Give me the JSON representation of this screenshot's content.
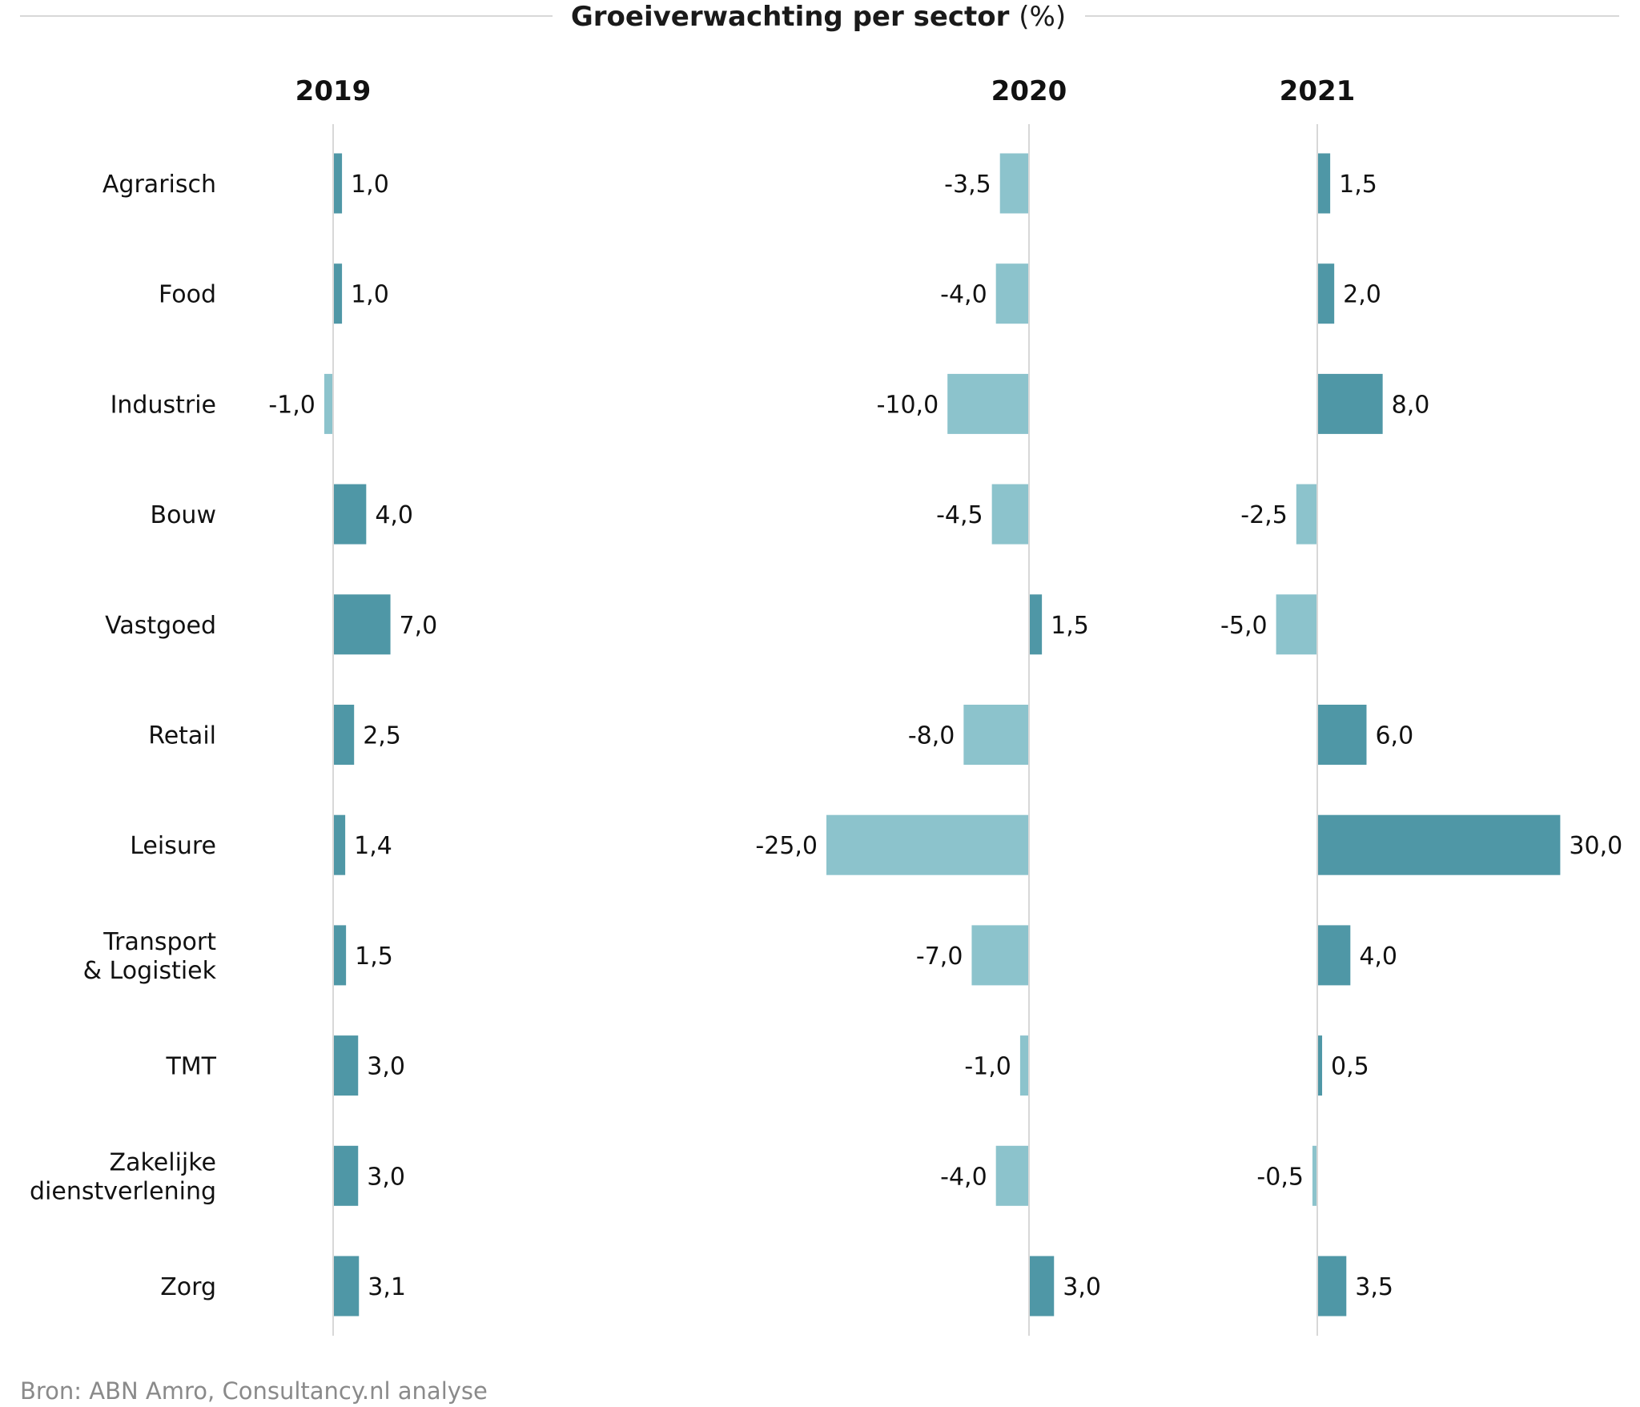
{
  "title": "Groeiverwachting per sector",
  "title_suffix": "(%)",
  "source": "Bron: ABN Amro, Consultancy.nl analyse",
  "colors": {
    "positive": "#4f97a6",
    "negative": "#8cc3cc",
    "axis": "#d8d8d8",
    "text": "#111111",
    "source_text": "#8a8a8a"
  },
  "chart_data": {
    "type": "bar",
    "orientation": "horizontal",
    "categories": [
      [
        "Agrarisch"
      ],
      [
        "Food"
      ],
      [
        "Industrie"
      ],
      [
        "Bouw"
      ],
      [
        "Vastgoed"
      ],
      [
        "Retail"
      ],
      [
        "Leisure"
      ],
      [
        "Transport",
        "& Logistiek"
      ],
      [
        "TMT"
      ],
      [
        "Zakelijke",
        "dienstverlening"
      ],
      [
        "Zorg"
      ]
    ],
    "series": [
      {
        "name": "2019",
        "values": [
          1.0,
          1.0,
          -1.0,
          4.0,
          7.0,
          2.5,
          1.4,
          1.5,
          3.0,
          3.0,
          3.1
        ],
        "labels": [
          "1,0",
          "1,0",
          "-1,0",
          "4,0",
          "7,0",
          "2,5",
          "1,4",
          "1,5",
          "3,0",
          "3,0",
          "3,1"
        ]
      },
      {
        "name": "2020",
        "values": [
          -3.5,
          -4.0,
          -10.0,
          -4.5,
          1.5,
          -8.0,
          -25.0,
          -7.0,
          -1.0,
          -4.0,
          3.0
        ],
        "labels": [
          "-3,5",
          "-4,0",
          "-10,0",
          "-4,5",
          "1,5",
          "-8,0",
          "-25,0",
          "-7,0",
          "-1,0",
          "-4,0",
          "3,0"
        ]
      },
      {
        "name": "2021",
        "values": [
          1.5,
          2.0,
          8.0,
          -2.5,
          -5.0,
          6.0,
          30.0,
          4.0,
          0.5,
          -0.5,
          3.5
        ],
        "labels": [
          "1,5",
          "2,0",
          "8,0",
          "-2,5",
          "-5,0",
          "6,0",
          "30,0",
          "4,0",
          "0,5",
          "-0,5",
          "3,5"
        ]
      }
    ],
    "grid": false,
    "legend": "none"
  }
}
